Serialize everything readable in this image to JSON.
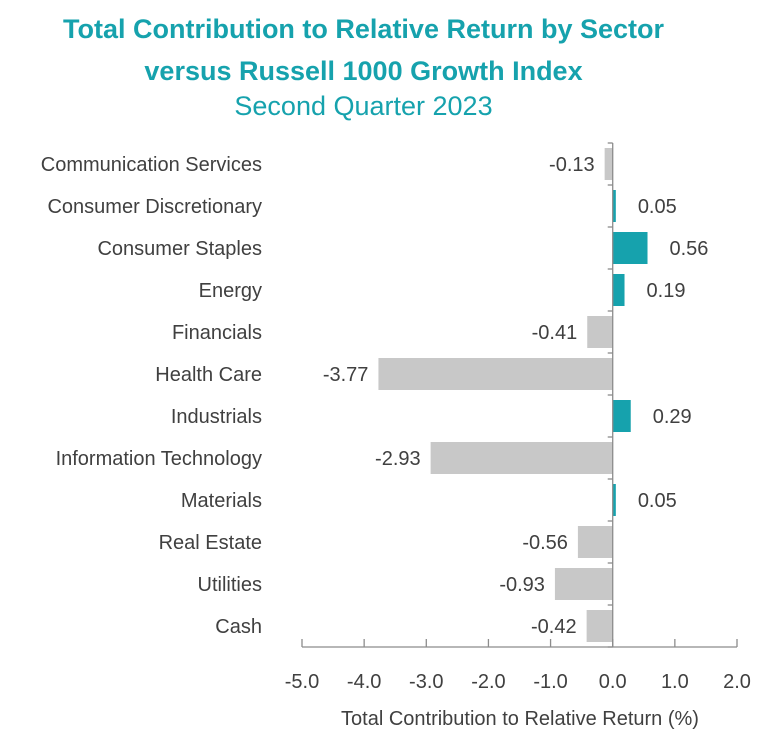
{
  "chart_data": {
    "type": "bar",
    "orientation": "horizontal",
    "title": "Total Contribution to Relative Return by Sector",
    "title_line2": "versus Russell 1000 Growth Index",
    "subtitle": "Second Quarter 2023",
    "xlabel": "Total Contribution to Relative Return (%)",
    "ylabel": "",
    "xlim": [
      -5.0,
      2.0
    ],
    "xticks": [
      -5.0,
      -4.0,
      -3.0,
      -2.0,
      -1.0,
      0.0,
      1.0,
      2.0
    ],
    "xtick_labels": [
      "-5.0",
      "-4.0",
      "-3.0",
      "-2.0",
      "-1.0",
      "0.0",
      "1.0",
      "2.0"
    ],
    "grid": false,
    "legend": "none",
    "categories": [
      "Communication Services",
      "Consumer Discretionary",
      "Consumer Staples",
      "Energy",
      "Financials",
      "Health Care",
      "Industrials",
      "Information Technology",
      "Materials",
      "Real Estate",
      "Utilities",
      "Cash"
    ],
    "values": [
      -0.13,
      0.05,
      0.56,
      0.19,
      -0.41,
      -3.77,
      0.29,
      -2.93,
      0.05,
      -0.56,
      -0.93,
      -0.42
    ],
    "value_labels": [
      "-0.13",
      "0.05",
      "0.56",
      "0.19",
      "-0.41",
      "-3.77",
      "0.29",
      "-2.93",
      "0.05",
      "-0.56",
      "-0.93",
      "-0.42"
    ],
    "colors": {
      "positive": "#16a2ad",
      "negative": "#c8c8c8",
      "title": "#16a2ad",
      "text": "#404040",
      "axis": "#8c8c8c"
    }
  }
}
